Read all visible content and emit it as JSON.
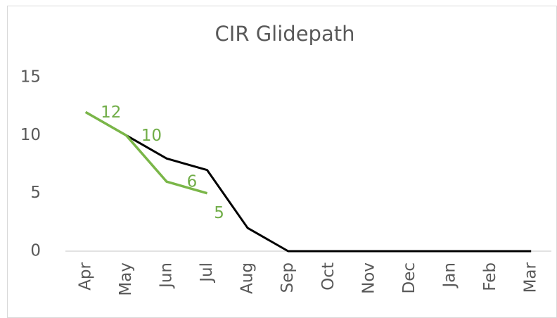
{
  "chart_data": {
    "type": "line",
    "title": "CIR Glidepath",
    "categories": [
      "Apr",
      "May",
      "Jun",
      "Jul",
      "Aug",
      "Sep",
      "Oct",
      "Nov",
      "Dec",
      "Jan",
      "Feb",
      "Mar"
    ],
    "series": [
      {
        "color": "#000000",
        "values": [
          12,
          10,
          8,
          7,
          2,
          0,
          0,
          0,
          0,
          0,
          0,
          0
        ]
      },
      {
        "color": "#7ab648",
        "values": [
          12,
          10,
          6,
          5,
          null,
          null,
          null,
          null,
          null,
          null,
          null,
          null
        ],
        "data_labels": true
      }
    ],
    "ylim": [
      0,
      15
    ],
    "yticks": [
      0,
      5,
      10,
      15
    ],
    "grid": false
  }
}
